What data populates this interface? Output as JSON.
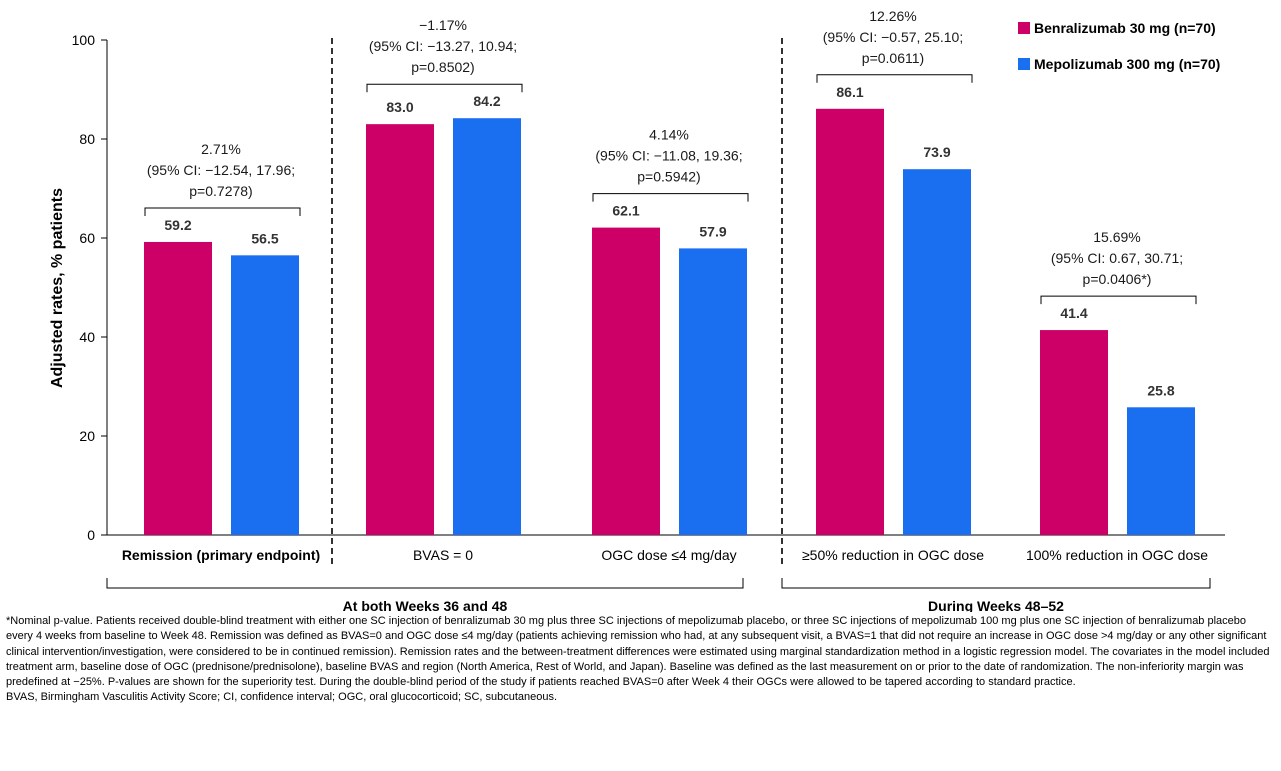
{
  "chart_data": {
    "type": "bar",
    "ylabel": "Adjusted rates, % patients",
    "ylim": [
      0,
      100
    ],
    "yticks": [
      0,
      20,
      40,
      60,
      80,
      100
    ],
    "grid": false,
    "legend_position": "top-right",
    "series": [
      {
        "name": "Benralizumab 30 mg (n=70)",
        "color": "#cc0066",
        "values": [
          59.2,
          83.0,
          62.1,
          86.1,
          41.4
        ],
        "labels": [
          "59.2",
          "83.0",
          "62.1",
          "86.1",
          "41.4"
        ]
      },
      {
        "name": "Mepolizumab 300 mg (n=70)",
        "color": "#1a6ef0",
        "values": [
          56.5,
          84.2,
          57.9,
          73.9,
          25.8
        ],
        "labels": [
          "56.5",
          "84.2",
          "57.9",
          "73.9",
          "25.8"
        ]
      }
    ],
    "categories": [
      "Remission (primary endpoint)",
      "BVAS = 0",
      "OGC dose ≤4 mg/day",
      "≥50% reduction  in OGC dose",
      "100% reduction in OGC dose"
    ],
    "annotations": [
      [
        "2.71%",
        "(95% CI: −12.54, 17.96;",
        "p=0.7278)"
      ],
      [
        "−1.17%",
        "(95% CI: −13.27, 10.94;",
        "p=0.8502)"
      ],
      [
        "4.14%",
        "(95% CI: −11.08, 19.36;",
        "p=0.5942)"
      ],
      [
        "12.26%",
        "(95% CI: −0.57, 25.10;",
        "p=0.0611)"
      ],
      [
        "15.69%",
        "(95% CI: 0.67, 30.71;",
        "p=0.0406*)"
      ]
    ],
    "groups": [
      {
        "label": "At both Weeks 36 and 48",
        "categories": [
          1,
          2
        ]
      },
      {
        "label": "During Weeks 48–52",
        "categories": [
          3,
          4
        ]
      }
    ]
  },
  "footnotes": {
    "main": "*Nominal p-value. Patients received double-blind treatment with either one SC injection of benralizumab 30 mg plus three SC injections of mepolizumab placebo, or three SC injections of mepolizumab 100 mg plus one SC injection of benralizumab placebo every 4 weeks from baseline to Week 48. Remission was defined as BVAS=0  and OGC dose ≤4 mg/day (patients achieving remission who had, at any subsequent visit, a BVAS=1 that did not require an increase in OGC dose >4 mg/day or any other significant clinical intervention/investigation, were considered to be in continued remission). Remission rates and the between-treatment   differences were estimated using marginal standardization method  in a logistic regression model. The covariates in the model included treatment arm, baseline dose of OGC (prednisone/prednisolone), baseline BVAS and region (North America, Rest of World, and Japan). Baseline was defined as the last measurement on or prior to the date of randomization. The non-inferiority margin was predefined at −25%. P-values are shown for the superiority test. During the  double-blind period of the study if patients reached BVAS=0  after Week 4 their OGCs were allowed to be tapered according to standard practice.",
    "abbreviations": "BVAS,  Birmingham Vasculitis Activity Score; CI, confidence interval; OGC, oral glucocorticoid; SC, subcutaneous."
  }
}
